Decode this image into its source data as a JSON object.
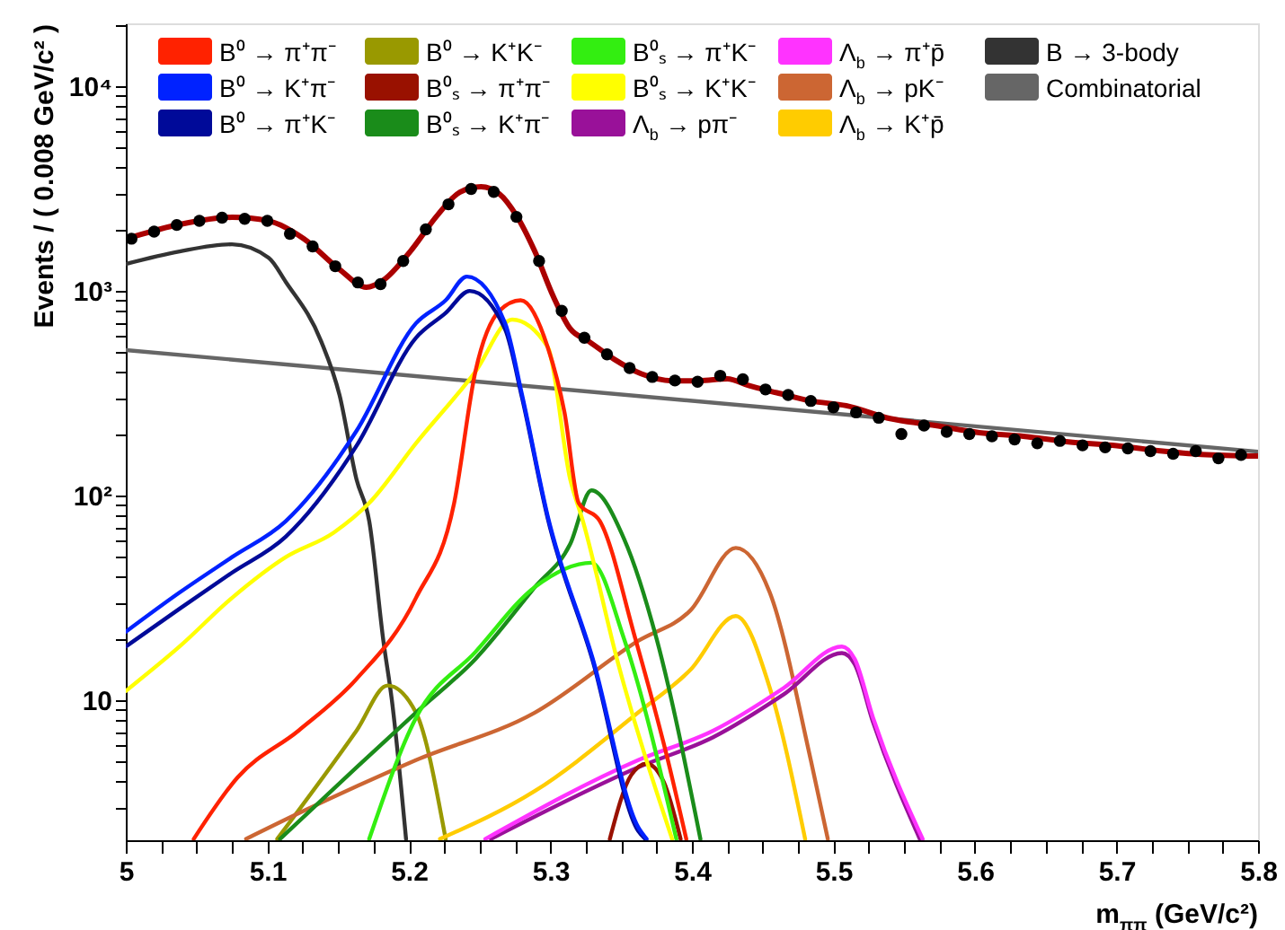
{
  "chart_data": {
    "type": "line",
    "xlabel": "m$_{ππ}$ (GeV/c²)",
    "ylabel": "Events / ( 0.008 GeV/c² )",
    "log": "y",
    "grid": false,
    "legend": "top",
    "line_style": "solid",
    "xlim": [
      5,
      5.8
    ],
    "ylim": [
      2.07,
      20300
    ],
    "xticks": [
      5,
      {
        "value": 5.025,
        "label": null
      },
      {
        "value": 5.05,
        "label": null
      },
      {
        "value": 5.075,
        "label": null
      },
      5.1,
      {
        "value": 5.125,
        "label": null
      },
      {
        "value": 5.15,
        "label": null
      },
      {
        "value": 5.175,
        "label": null
      },
      5.2,
      {
        "value": 5.225,
        "label": null
      },
      {
        "value": 5.25,
        "label": null
      },
      {
        "value": 5.275,
        "label": null
      },
      5.3,
      {
        "value": 5.325,
        "label": null
      },
      {
        "value": 5.35,
        "label": null
      },
      {
        "value": 5.375,
        "label": null
      },
      5.4,
      {
        "value": 5.425,
        "label": null
      },
      {
        "value": 5.45,
        "label": null
      },
      {
        "value": 5.475,
        "label": null
      },
      5.5,
      {
        "value": 5.525,
        "label": null
      },
      {
        "value": 5.55,
        "label": null
      },
      {
        "value": 5.575,
        "label": null
      },
      5.6,
      {
        "value": 5.625,
        "label": null
      },
      {
        "value": 5.65,
        "label": null
      },
      {
        "value": 5.675,
        "label": null
      },
      5.7,
      {
        "value": 5.725,
        "label": null
      },
      {
        "value": 5.75,
        "label": null
      },
      {
        "value": 5.775,
        "label": null
      },
      5.8
    ],
    "yticks": [
      {
        "value": 3,
        "label": null
      },
      {
        "value": 4,
        "label": null
      },
      {
        "value": 5,
        "label": null
      },
      {
        "value": 6,
        "label": null
      },
      {
        "value": 7,
        "label": null
      },
      {
        "value": 8,
        "label": null
      },
      {
        "value": 9,
        "label": null
      },
      10,
      {
        "value": 20,
        "label": null
      },
      {
        "value": 30,
        "label": null
      },
      {
        "value": 40,
        "label": null
      },
      {
        "value": 50,
        "label": null
      },
      {
        "value": 60,
        "label": null
      },
      {
        "value": 70,
        "label": null
      },
      {
        "value": 80,
        "label": null
      },
      {
        "value": 90,
        "label": null
      },
      {
        "value": 100,
        "label": "10²"
      },
      {
        "value": 200,
        "label": null
      },
      {
        "value": 300,
        "label": null
      },
      {
        "value": 400,
        "label": null
      },
      {
        "value": 500,
        "label": null
      },
      {
        "value": 600,
        "label": null
      },
      {
        "value": 700,
        "label": null
      },
      {
        "value": 800,
        "label": null
      },
      {
        "value": 900,
        "label": null
      },
      {
        "value": 1000,
        "label": "10³"
      },
      {
        "value": 2000,
        "label": null
      },
      {
        "value": 3000,
        "label": null
      },
      {
        "value": 4000,
        "label": null
      },
      {
        "value": 5000,
        "label": null
      },
      {
        "value": 6000,
        "label": null
      },
      {
        "value": 7000,
        "label": null
      },
      {
        "value": 8000,
        "label": null
      },
      {
        "value": 9000,
        "label": null
      },
      {
        "value": 10000,
        "label": "10⁴"
      },
      {
        "value": 20000,
        "label": null
      }
    ],
    "series": [
      {
        "name": "Combinatorial",
        "color": "#666666",
        "x": [
          5.0,
          5.8
        ],
        "values": [
          514,
          164
        ]
      },
      {
        "name": "B → 3-body",
        "color": "#333333",
        "x": [
          5.0,
          5.038,
          5.075,
          5.101,
          5.113,
          5.138,
          5.151,
          5.163,
          5.172,
          5.182,
          5.188,
          5.198
        ],
        "values": [
          1355,
          1560,
          1690,
          1450,
          1107,
          568,
          310,
          120,
          75,
          19.5,
          10,
          2.1
        ]
      },
      {
        "name": "B⁰ → K⁺K⁻",
        "color": "#999900",
        "x": [
          5.107,
          5.163,
          5.185,
          5.205,
          5.226
        ],
        "values": [
          2.1,
          7.1,
          11.8,
          8.7,
          2.1
        ]
      },
      {
        "name": "Λ$_{b}$ → pK⁻",
        "color": "#cc6633",
        "x": [
          5.085,
          5.122,
          5.205,
          5.289,
          5.362,
          5.399,
          5.431,
          5.455,
          5.484,
          5.496
        ],
        "values": [
          2.1,
          2.8,
          5.1,
          8.7,
          19.5,
          27.5,
          55.5,
          33.6,
          5.1,
          2.1
        ]
      },
      {
        "name": "Λ$_{b}$ → K⁺p̄",
        "color": "#ffcc00",
        "x": [
          5.222,
          5.289,
          5.362,
          5.399,
          5.431,
          5.455,
          5.48
        ],
        "values": [
          2.1,
          3.6,
          8.7,
          14.1,
          25.8,
          11.5,
          2.1
        ]
      },
      {
        "name": "Λ$_{b}$ → pπ⁻",
        "color": "#991199",
        "x": [
          5.258,
          5.362,
          5.415,
          5.465,
          5.506,
          5.515,
          5.528,
          5.561
        ],
        "values": [
          2.1,
          4.7,
          6.6,
          10.7,
          17,
          15,
          7.8,
          2.1
        ]
      },
      {
        "name": "Λ$_{b}$ → π⁺p̄",
        "color": "#ff33ff",
        "x": [
          5.254,
          5.362,
          5.415,
          5.465,
          5.506,
          5.515,
          5.528,
          5.563
        ],
        "values": [
          2.1,
          5.1,
          7.1,
          11.5,
          18.3,
          15.9,
          8.2,
          2.1
        ]
      },
      {
        "name": "B⁰ₛ → π⁺π⁻",
        "color": "#991100",
        "x": [
          5.342,
          5.357,
          5.368,
          5.38,
          5.392
        ],
        "values": [
          2.1,
          4.3,
          4.9,
          4,
          2.1
        ]
      },
      {
        "name": "B⁰ₛ → K⁺π⁻",
        "color": "#1a8c1a",
        "x": [
          5.109,
          5.163,
          5.205,
          5.247,
          5.289,
          5.314,
          5.329,
          5.352,
          5.375,
          5.406
        ],
        "values": [
          2.1,
          4.7,
          8.7,
          15.9,
          35.7,
          58,
          106,
          61.6,
          20,
          2.1
        ]
      },
      {
        "name": "B⁰ₛ → π⁺K⁻",
        "color": "#33ee11",
        "x": [
          5.172,
          5.205,
          5.247,
          5.289,
          5.329,
          5.352,
          5.389
        ],
        "values": [
          2.1,
          8.2,
          17.2,
          35.7,
          47,
          20,
          2.1
        ]
      },
      {
        "name": "B⁰ₛ → K⁺K⁻",
        "color": "#ffff00",
        "x": [
          5.0,
          5.038,
          5.075,
          5.113,
          5.147,
          5.172,
          5.205,
          5.247,
          5.273,
          5.298,
          5.314,
          5.323,
          5.348,
          5.386
        ],
        "values": [
          11.1,
          18.3,
          31.6,
          50,
          66,
          92,
          180,
          403,
          725,
          534,
          120,
          75,
          15,
          2.1
        ]
      },
      {
        "name": "B⁰ → π⁺π⁻",
        "color": "#ff2200",
        "x": [
          5.048,
          5.079,
          5.122,
          5.163,
          5.205,
          5.232,
          5.247,
          5.264,
          5.279,
          5.298,
          5.31,
          5.32,
          5.335,
          5.36,
          5.383,
          5.396
        ],
        "values": [
          2.1,
          4.2,
          7.1,
          12.7,
          31.6,
          92,
          403,
          800,
          900,
          534,
          254,
          92,
          75,
          20,
          5.1,
          2.1
        ]
      },
      {
        "name": "B⁰ → π⁺K⁻",
        "color": "#000a99",
        "x": [
          5.0,
          5.038,
          5.075,
          5.113,
          5.163,
          5.205,
          5.226,
          5.243,
          5.268,
          5.28,
          5.298,
          5.33,
          5.362,
          5.367
        ],
        "values": [
          18.3,
          28,
          42,
          63,
          175,
          590,
          780,
          1000,
          650,
          300,
          78,
          15.5,
          2.3,
          2.1
        ]
      },
      {
        "name": "B⁰ → K⁺π⁻",
        "color": "#0022ff",
        "x": [
          5.0,
          5.038,
          5.075,
          5.113,
          5.163,
          5.205,
          5.226,
          5.241,
          5.268,
          5.28,
          5.298,
          5.33,
          5.362,
          5.368
        ],
        "values": [
          21.6,
          33.6,
          50,
          75,
          207,
          695,
          900,
          1175,
          695,
          310,
          80,
          15.9,
          2.4,
          2.1
        ]
      },
      {
        "color": "#aa0000",
        "x": [
          5.0,
          5.038,
          5.075,
          5.101,
          5.126,
          5.151,
          5.17,
          5.182,
          5.201,
          5.22,
          5.236,
          5.251,
          5.264,
          5.276,
          5.289,
          5.302,
          5.314,
          5.327,
          5.345,
          5.364,
          5.386,
          5.405,
          5.425,
          5.44,
          5.46,
          5.484,
          5.509,
          5.54,
          5.572,
          5.603,
          5.634,
          5.666,
          5.697,
          5.729,
          5.76,
          5.8
        ],
        "values": [
          1795,
          2113,
          2290,
          2198,
          1795,
          1274,
          1042,
          1129,
          1560,
          2335,
          3035,
          3226,
          2979,
          2335,
          1560,
          942,
          654,
          568,
          464,
          394,
          364,
          364,
          372,
          345,
          318,
          290,
          275,
          238,
          220,
          203,
          195,
          183,
          176,
          166,
          159,
          156
        ]
      },
      {
        "type": "scatter",
        "color": "#000000",
        "marker": "circle",
        "x": [
          5.004,
          5.02,
          5.036,
          5.052,
          5.068,
          5.084,
          5.1,
          5.116,
          5.132,
          5.148,
          5.164,
          5.18,
          5.196,
          5.212,
          5.228,
          5.244,
          5.26,
          5.276,
          5.292,
          5.308,
          5.324,
          5.34,
          5.356,
          5.372,
          5.388,
          5.404,
          5.42,
          5.436,
          5.452,
          5.468,
          5.484,
          5.5,
          5.516,
          5.532,
          5.548,
          5.564,
          5.58,
          5.596,
          5.612,
          5.628,
          5.644,
          5.66,
          5.676,
          5.692,
          5.708,
          5.724,
          5.74,
          5.756,
          5.772,
          5.788
        ],
        "values": [
          1800,
          1950,
          2100,
          2200,
          2280,
          2250,
          2200,
          1900,
          1650,
          1320,
          1100,
          1080,
          1400,
          2000,
          2650,
          3150,
          3050,
          2300,
          1400,
          800,
          590,
          490,
          420,
          380,
          365,
          360,
          385,
          370,
          330,
          310,
          290,
          270,
          255,
          240,
          200,
          220,
          205,
          200,
          195,
          188,
          180,
          185,
          176,
          172,
          170,
          165,
          160,
          165,
          152,
          158
        ]
      }
    ]
  }
}
